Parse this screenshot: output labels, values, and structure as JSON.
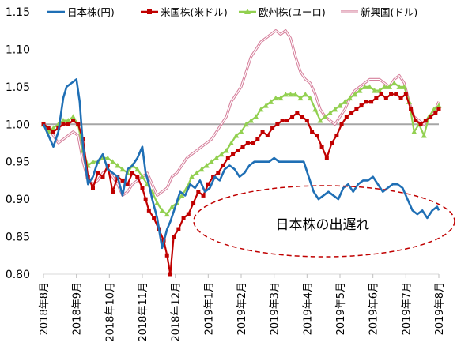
{
  "chart_data": {
    "type": "line",
    "title": "",
    "xlabel": "",
    "ylabel": "",
    "ylim": [
      0.8,
      1.15
    ],
    "yticks": [
      "0.80",
      "0.85",
      "0.90",
      "0.95",
      "1.00",
      "1.05",
      "1.10",
      "1.15"
    ],
    "baseline": 1.0,
    "legend_position": "top",
    "grid": false,
    "x_tick_labels": [
      "2018年8月",
      "2018年9月",
      "2018年10月",
      "2018年11月",
      "2018年12月",
      "2019年1月",
      "2019年2月",
      "2019年3月",
      "2019年4月",
      "2019年5月",
      "2019年6月",
      "2019年7月",
      "2019年8月"
    ],
    "x_tick_months": [
      0,
      1,
      2,
      3,
      4,
      5,
      6,
      7,
      8,
      9,
      10,
      11,
      12
    ],
    "annotation": "日本株の出遅れ",
    "series": [
      {
        "name": "日本株(円)",
        "color": "#1F6FB5",
        "x": [
          0,
          0.15,
          0.3,
          0.45,
          0.6,
          0.7,
          0.85,
          1.0,
          1.1,
          1.2,
          1.35,
          1.5,
          1.65,
          1.8,
          1.95,
          2.1,
          2.25,
          2.4,
          2.55,
          2.7,
          2.85,
          3.0,
          3.1,
          3.2,
          3.3,
          3.45,
          3.6,
          3.75,
          3.85,
          4.0,
          4.15,
          4.3,
          4.45,
          4.6,
          4.75,
          4.9,
          5.05,
          5.2,
          5.35,
          5.5,
          5.65,
          5.8,
          5.95,
          6.1,
          6.25,
          6.4,
          6.55,
          6.7,
          6.85,
          7.0,
          7.15,
          7.3,
          7.45,
          7.6,
          7.75,
          7.9,
          8.05,
          8.2,
          8.35,
          8.5,
          8.65,
          8.8,
          8.95,
          9.1,
          9.25,
          9.4,
          9.55,
          9.7,
          9.85,
          10.0,
          10.15,
          10.3,
          10.45,
          10.6,
          10.75,
          10.9,
          11.05,
          11.2,
          11.35,
          11.5,
          11.65,
          11.8,
          11.95,
          12.0
        ],
        "values": [
          1.0,
          0.985,
          0.97,
          0.99,
          1.035,
          1.05,
          1.055,
          1.06,
          1.03,
          0.97,
          0.92,
          0.93,
          0.95,
          0.96,
          0.94,
          0.935,
          0.93,
          0.905,
          0.94,
          0.945,
          0.955,
          0.97,
          0.935,
          0.92,
          0.9,
          0.875,
          0.835,
          0.86,
          0.87,
          0.89,
          0.91,
          0.905,
          0.92,
          0.915,
          0.925,
          0.91,
          0.915,
          0.93,
          0.925,
          0.94,
          0.945,
          0.94,
          0.93,
          0.935,
          0.945,
          0.95,
          0.95,
          0.95,
          0.95,
          0.955,
          0.95,
          0.95,
          0.95,
          0.95,
          0.95,
          0.95,
          0.93,
          0.91,
          0.9,
          0.905,
          0.91,
          0.905,
          0.9,
          0.915,
          0.92,
          0.91,
          0.92,
          0.925,
          0.925,
          0.93,
          0.92,
          0.91,
          0.915,
          0.92,
          0.92,
          0.915,
          0.9,
          0.885,
          0.88,
          0.885,
          0.875,
          0.885,
          0.89,
          0.885
        ]
      },
      {
        "name": "米国株(米ドル)",
        "color": "#C00000",
        "x": [
          0,
          0.15,
          0.3,
          0.45,
          0.6,
          0.75,
          0.9,
          1.05,
          1.2,
          1.35,
          1.5,
          1.65,
          1.8,
          1.95,
          2.1,
          2.25,
          2.4,
          2.55,
          2.7,
          2.85,
          3.0,
          3.1,
          3.2,
          3.35,
          3.5,
          3.65,
          3.75,
          3.85,
          3.95,
          4.1,
          4.25,
          4.4,
          4.55,
          4.7,
          4.85,
          5.0,
          5.15,
          5.3,
          5.45,
          5.6,
          5.75,
          5.9,
          6.05,
          6.2,
          6.35,
          6.5,
          6.65,
          6.8,
          6.95,
          7.1,
          7.25,
          7.4,
          7.55,
          7.7,
          7.85,
          8.0,
          8.15,
          8.3,
          8.45,
          8.6,
          8.75,
          8.9,
          9.05,
          9.2,
          9.35,
          9.5,
          9.65,
          9.8,
          9.95,
          10.1,
          10.25,
          10.4,
          10.55,
          10.7,
          10.85,
          11.0,
          11.15,
          11.3,
          11.45,
          11.6,
          11.75,
          11.9,
          12.0
        ],
        "values": [
          1.0,
          0.995,
          0.99,
          0.995,
          1.0,
          1.0,
          1.005,
          1.0,
          0.98,
          0.93,
          0.915,
          0.935,
          0.93,
          0.945,
          0.91,
          0.93,
          0.925,
          0.92,
          0.935,
          0.93,
          0.915,
          0.9,
          0.885,
          0.875,
          0.86,
          0.845,
          0.825,
          0.8,
          0.85,
          0.86,
          0.875,
          0.88,
          0.895,
          0.91,
          0.905,
          0.92,
          0.93,
          0.935,
          0.945,
          0.955,
          0.96,
          0.965,
          0.97,
          0.975,
          0.975,
          0.98,
          0.99,
          0.985,
          0.995,
          1.0,
          1.005,
          1.005,
          1.01,
          1.015,
          1.01,
          1.005,
          0.99,
          0.985,
          0.97,
          0.955,
          0.975,
          0.985,
          1.0,
          1.01,
          1.015,
          1.02,
          1.025,
          1.03,
          1.03,
          1.035,
          1.04,
          1.035,
          1.04,
          1.04,
          1.035,
          1.04,
          1.02,
          1.005,
          1.0,
          1.005,
          1.01,
          1.015,
          1.02
        ]
      },
      {
        "name": "欧州株(ユーロ)",
        "color": "#92D050",
        "x": [
          0,
          0.15,
          0.3,
          0.45,
          0.6,
          0.75,
          0.9,
          1.05,
          1.2,
          1.35,
          1.5,
          1.65,
          1.8,
          1.95,
          2.1,
          2.25,
          2.4,
          2.55,
          2.7,
          2.85,
          3.0,
          3.15,
          3.3,
          3.45,
          3.6,
          3.75,
          3.9,
          4.05,
          4.2,
          4.35,
          4.5,
          4.65,
          4.8,
          4.95,
          5.1,
          5.25,
          5.4,
          5.55,
          5.7,
          5.85,
          6.0,
          6.15,
          6.3,
          6.45,
          6.6,
          6.75,
          6.9,
          7.05,
          7.2,
          7.35,
          7.5,
          7.65,
          7.8,
          7.95,
          8.1,
          8.25,
          8.4,
          8.55,
          8.7,
          8.85,
          9.0,
          9.15,
          9.3,
          9.45,
          9.6,
          9.75,
          9.9,
          10.05,
          10.2,
          10.35,
          10.5,
          10.65,
          10.8,
          10.95,
          11.1,
          11.25,
          11.4,
          11.55,
          11.7,
          11.85,
          12.0
        ],
        "values": [
          1.0,
          0.99,
          0.995,
          1.0,
          1.005,
          1.005,
          1.01,
          1.0,
          0.965,
          0.945,
          0.95,
          0.95,
          0.955,
          0.955,
          0.95,
          0.945,
          0.94,
          0.935,
          0.945,
          0.94,
          0.93,
          0.92,
          0.91,
          0.895,
          0.885,
          0.88,
          0.89,
          0.895,
          0.905,
          0.915,
          0.93,
          0.935,
          0.94,
          0.945,
          0.95,
          0.955,
          0.96,
          0.965,
          0.975,
          0.985,
          0.99,
          1.0,
          1.005,
          1.01,
          1.02,
          1.025,
          1.03,
          1.035,
          1.035,
          1.04,
          1.04,
          1.04,
          1.035,
          1.04,
          1.035,
          1.02,
          1.005,
          1.01,
          1.015,
          1.02,
          1.025,
          1.03,
          1.035,
          1.04,
          1.045,
          1.05,
          1.05,
          1.045,
          1.045,
          1.05,
          1.05,
          1.055,
          1.05,
          1.05,
          1.03,
          0.99,
          1.0,
          0.985,
          1.01,
          1.02,
          1.025
        ]
      },
      {
        "name": "新興国(ドル)",
        "color": "#D6809C",
        "x": [
          0,
          0.15,
          0.3,
          0.45,
          0.6,
          0.75,
          0.9,
          1.05,
          1.2,
          1.35,
          1.5,
          1.65,
          1.8,
          1.95,
          2.1,
          2.25,
          2.4,
          2.55,
          2.7,
          2.85,
          3.0,
          3.15,
          3.3,
          3.45,
          3.6,
          3.75,
          3.9,
          4.05,
          4.2,
          4.35,
          4.5,
          4.65,
          4.8,
          4.95,
          5.1,
          5.25,
          5.4,
          5.55,
          5.7,
          5.85,
          6.0,
          6.15,
          6.3,
          6.45,
          6.6,
          6.75,
          6.9,
          7.05,
          7.2,
          7.35,
          7.5,
          7.65,
          7.8,
          7.95,
          8.1,
          8.25,
          8.4,
          8.55,
          8.7,
          8.85,
          9.0,
          9.15,
          9.3,
          9.45,
          9.6,
          9.75,
          9.9,
          10.05,
          10.2,
          10.35,
          10.5,
          10.65,
          10.8,
          10.95,
          11.1,
          11.25,
          11.4,
          11.55,
          11.7,
          11.85,
          12.0
        ],
        "values": [
          1.0,
          0.995,
          0.985,
          0.975,
          0.98,
          0.985,
          0.99,
          0.985,
          0.95,
          0.925,
          0.92,
          0.925,
          0.935,
          0.94,
          0.93,
          0.92,
          0.905,
          0.91,
          0.92,
          0.925,
          0.93,
          0.935,
          0.92,
          0.905,
          0.91,
          0.915,
          0.93,
          0.935,
          0.945,
          0.955,
          0.96,
          0.965,
          0.97,
          0.975,
          0.98,
          0.99,
          1.0,
          1.01,
          1.03,
          1.04,
          1.05,
          1.07,
          1.09,
          1.1,
          1.11,
          1.115,
          1.12,
          1.125,
          1.12,
          1.125,
          1.115,
          1.09,
          1.07,
          1.06,
          1.055,
          1.04,
          1.02,
          1.01,
          1.005,
          1.0,
          1.01,
          1.02,
          1.035,
          1.045,
          1.05,
          1.055,
          1.06,
          1.06,
          1.06,
          1.055,
          1.05,
          1.06,
          1.065,
          1.055,
          1.03,
          1.01,
          1.005,
          1.0,
          1.01,
          1.015,
          1.03
        ]
      }
    ]
  }
}
